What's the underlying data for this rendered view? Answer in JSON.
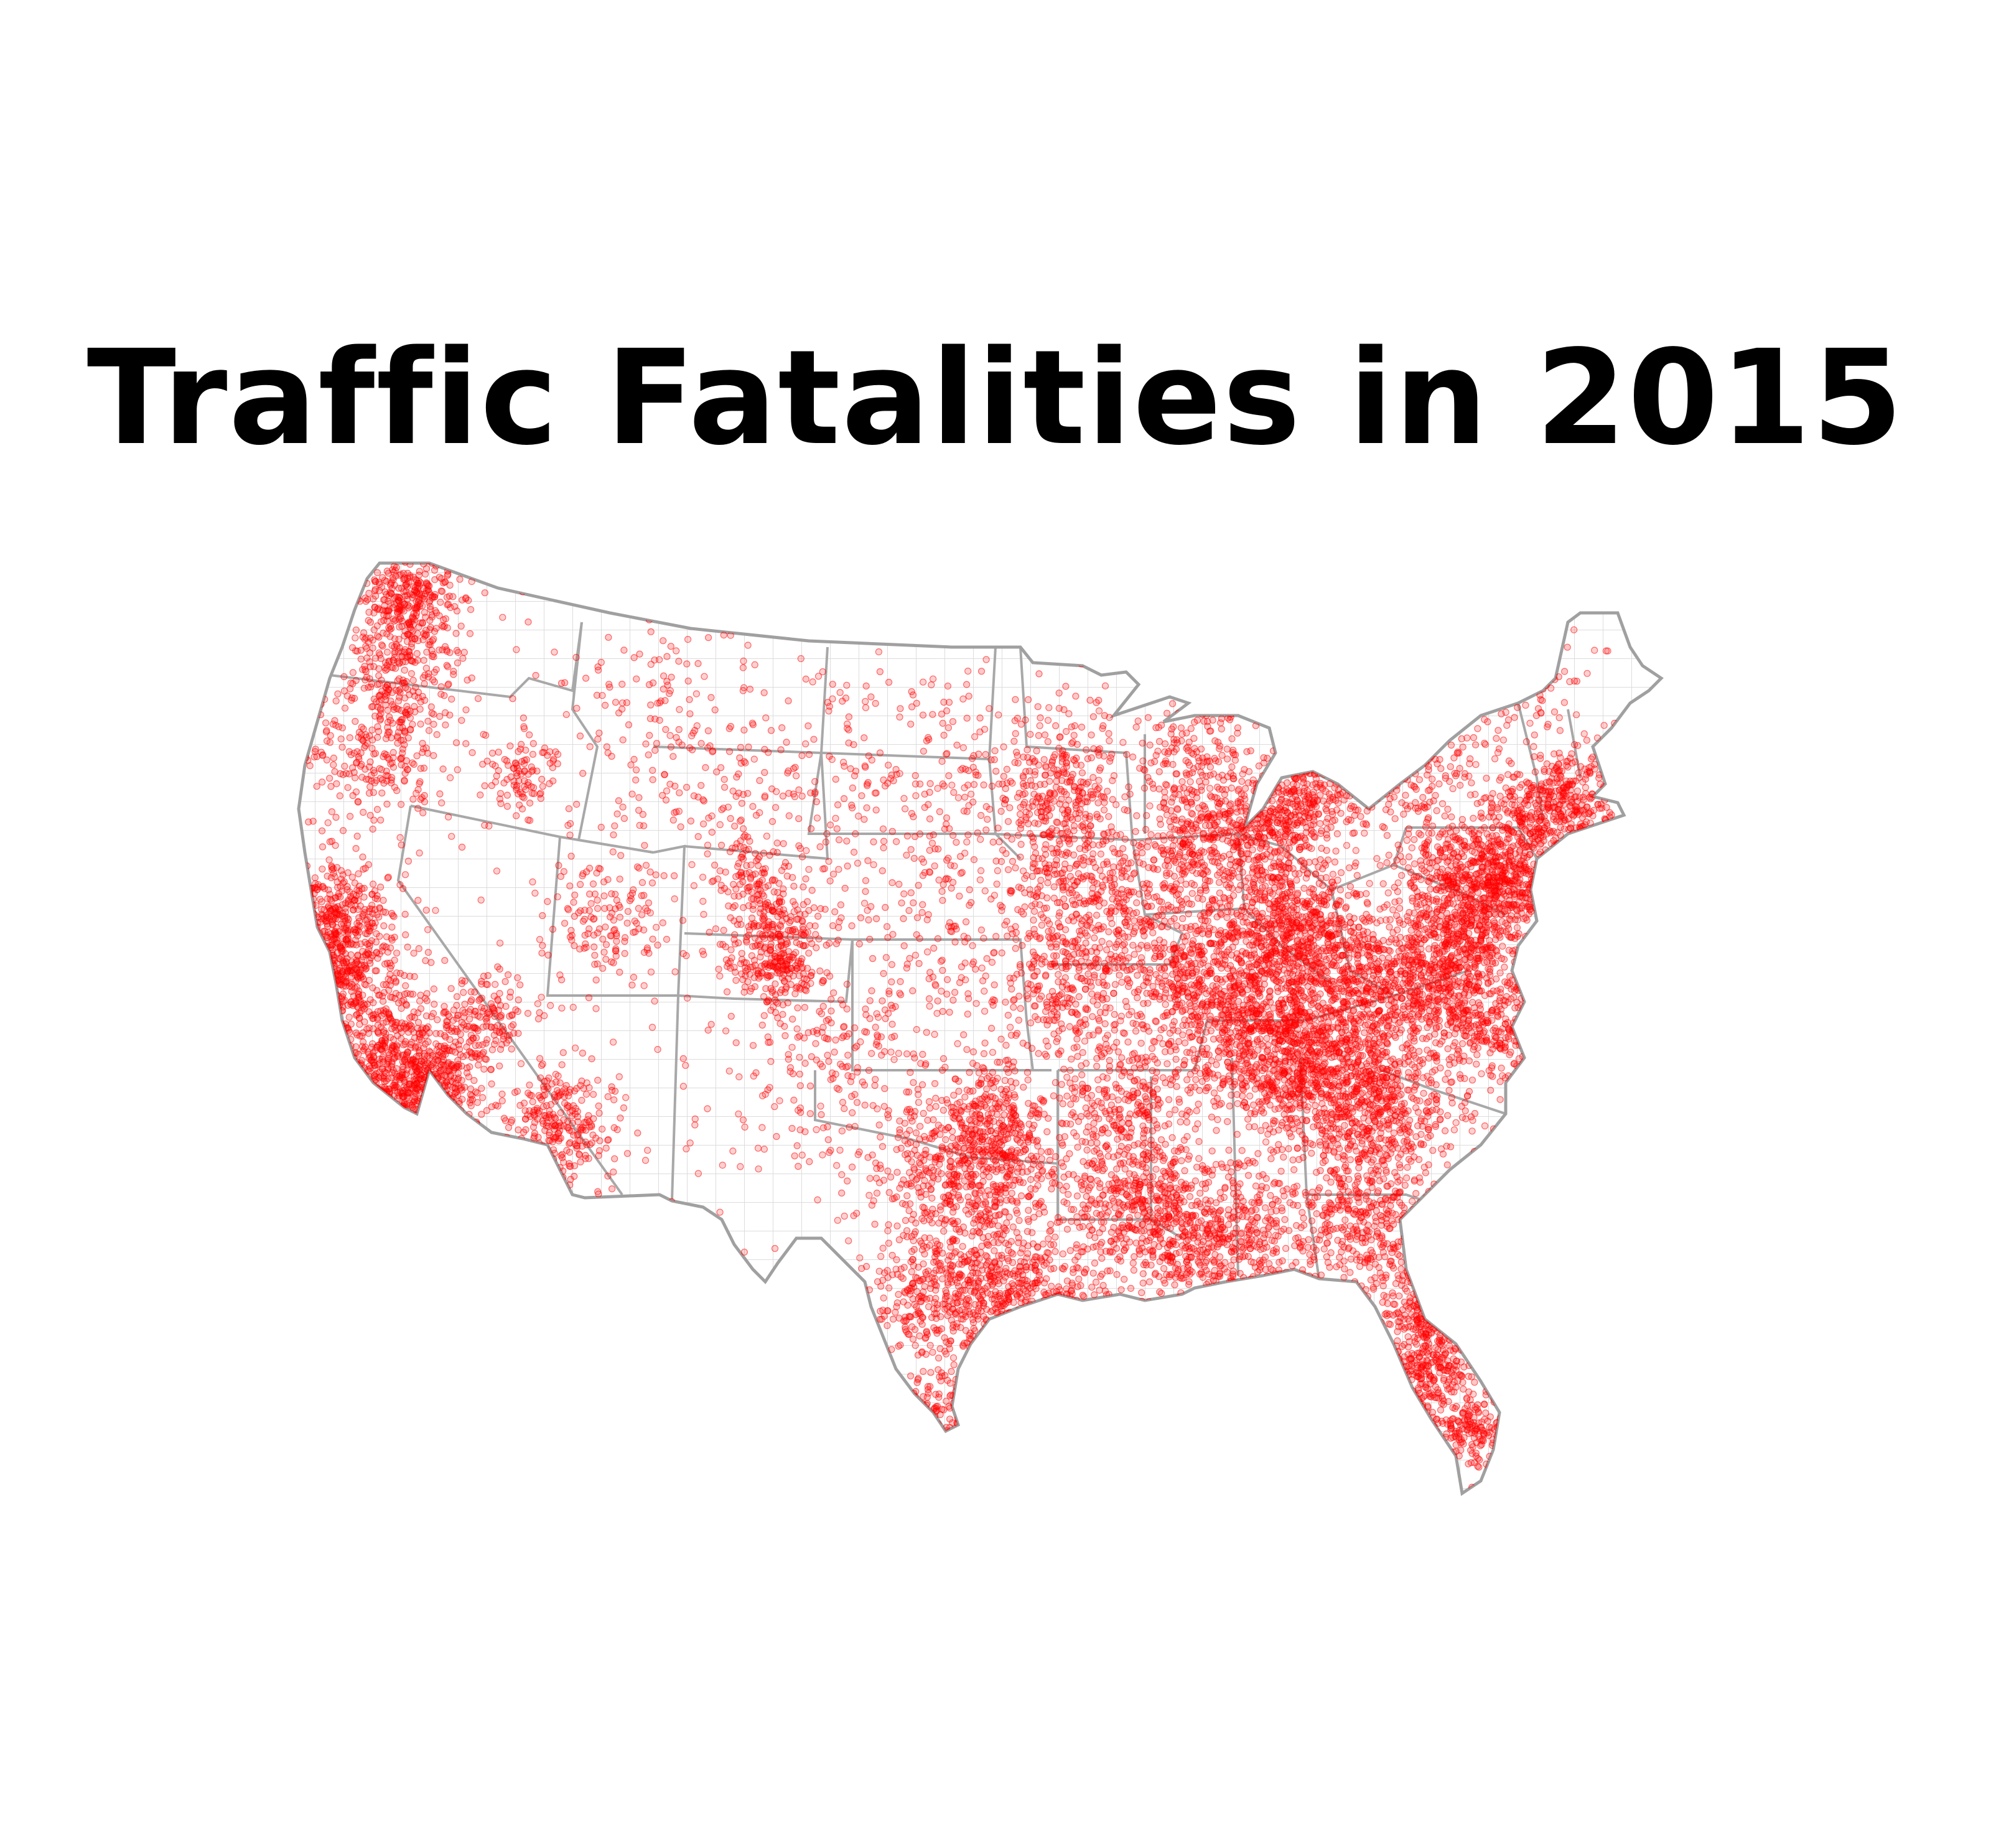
{
  "title": "Traffic Fatalities in 2015",
  "map": {
    "region": "contiguous-united-states",
    "layers": [
      "county-boundaries",
      "state-boundaries",
      "fatality-points"
    ],
    "colors": {
      "points": "#ff0000",
      "state_borders": "#a8a8a8",
      "county_borders": "#d8d8d8",
      "background": "#ffffff"
    }
  }
}
